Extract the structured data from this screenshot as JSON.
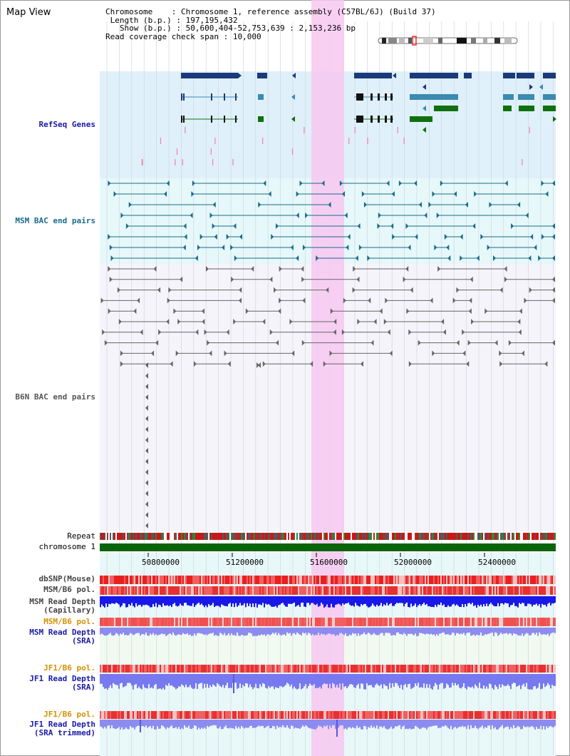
{
  "title": "Map View",
  "info": {
    "chromosome_key": "Chromosome",
    "chromosome_val": "Chromosome 1, reference assembly (C57BL/6J) (Build 37)",
    "length_key": "Length (b.p.)",
    "length_val": "197,195,432",
    "show_key": "Show (b.p.)",
    "show_val": "50,600,404-52,753,639 : 2,153,236 bp",
    "coverage_key": "Read coverage check span",
    "coverage_val": "10,000"
  },
  "tracks": {
    "refseq": "RefSeq Genes",
    "msm_bac": "MSM BAC end pairs",
    "b6n_bac": "B6N BAC end pairs",
    "repeat": "Repeat",
    "chromosome": "chromosome 1",
    "dbsnp": "dbSNP(Mouse)",
    "msm_b6_pol": "MSM/B6 pol.",
    "msm_depth_cap_1": "MSM Read Depth",
    "msm_depth_cap_2": "(Capillary)",
    "msm_b6_pol_sra": "MSM/B6 pol.",
    "msm_depth_sra_1": "MSM Read Depth",
    "msm_depth_sra_2": "(SRA)",
    "jf1_b6_pol": "JF1/B6 pol.",
    "jf1_depth_1": "JF1 Read Depth",
    "jf1_depth_2": "(SRA)",
    "jf1_b6_pol_2": "JF1/B6 pol.",
    "jf1_trim_1": "JF1 Read Depth",
    "jf1_trim_2": "(SRA trimmed)"
  },
  "ruler": [
    "50800000",
    "51200000",
    "51600000",
    "52000000",
    "52400000"
  ],
  "colors": {
    "gene_navy": "#1a3a7a",
    "gene_teal": "#3b8ab0",
    "gene_green": "#107010",
    "highlight": "#f7c8f0",
    "label_blue": "#1a1aa8",
    "label_teal": "#1a6a8a",
    "label_orange": "#d89000"
  }
}
